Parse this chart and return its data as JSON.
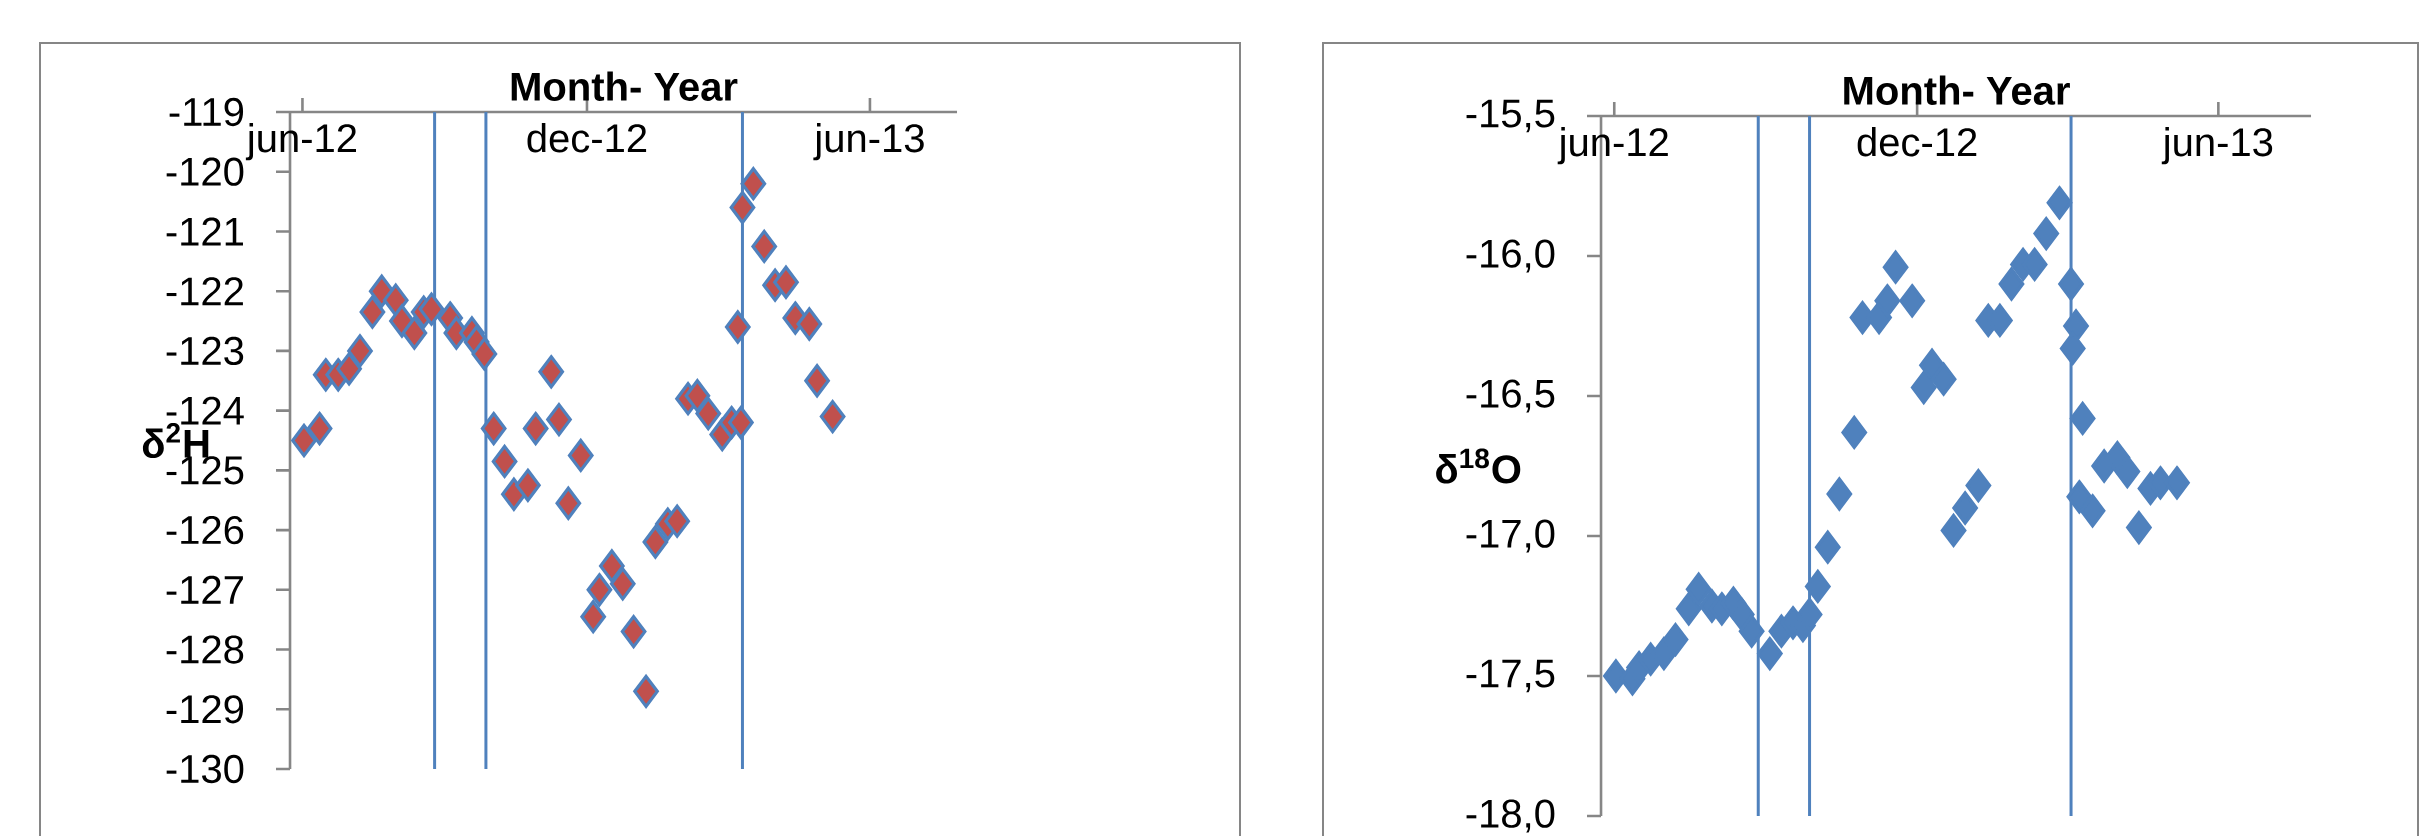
{
  "chart_data": [
    {
      "type": "scatter",
      "xlabel": "Month- Year",
      "ylabel": "δ$^{2}$H",
      "marker": "diamond",
      "xlim": [
        "2012-05-24",
        "2013-07-27"
      ],
      "ylim": [
        -130,
        -119
      ],
      "xticks": [
        {
          "value": "2012-06-01",
          "label": "jun-12"
        },
        {
          "value": "2012-12-01",
          "label": "dec-12"
        },
        {
          "value": "2013-06-01",
          "label": "jun-13"
        }
      ],
      "yticks": [
        -130,
        -129,
        -128,
        -127,
        -126,
        -125,
        -124,
        -123,
        -122,
        -121,
        -120,
        -119
      ],
      "ref_lines": [
        {
          "axis": "x",
          "value": "2012-08-25",
          "color": "#4f81bd"
        },
        {
          "axis": "x",
          "value": "2012-09-27",
          "color": "#4f81bd"
        },
        {
          "axis": "x",
          "value": "2013-03-11",
          "color": "#4f81bd"
        }
      ],
      "series": [
        {
          "color": "#c0504d",
          "x": [
            "2012-06-02",
            "2012-06-12",
            "2012-06-16",
            "2012-06-24",
            "2012-07-01",
            "2012-07-08",
            "2012-07-16",
            "2012-07-22",
            "2012-07-31",
            "2012-08-04",
            "2012-08-12",
            "2012-08-18",
            "2012-08-23",
            "2012-09-04",
            "2012-09-08",
            "2012-09-18",
            "2012-09-21",
            "2012-09-26",
            "2012-10-02",
            "2012-10-09",
            "2012-10-15",
            "2012-10-24",
            "2012-10-29",
            "2012-11-08",
            "2012-11-13",
            "2012-11-19",
            "2012-11-27",
            "2012-12-05",
            "2012-12-09",
            "2012-12-17",
            "2012-12-24",
            "2012-12-31",
            "2013-01-08",
            "2013-01-14",
            "2013-01-22",
            "2013-01-28",
            "2013-02-04",
            "2013-02-10",
            "2013-02-17",
            "2013-02-26",
            "2013-03-04",
            "2013-03-10",
            "2013-03-08",
            "2013-03-11",
            "2013-03-18",
            "2013-03-25",
            "2013-04-01",
            "2013-04-08",
            "2013-04-14",
            "2013-04-23",
            "2013-04-28",
            "2013-05-08"
          ],
          "values": [
            -124.5,
            -124.3,
            -123.4,
            -123.4,
            -123.3,
            -123.0,
            -122.35,
            -122.0,
            -122.15,
            -122.5,
            -122.7,
            -122.35,
            -122.3,
            -122.45,
            -122.7,
            -122.7,
            -122.85,
            -123.05,
            -124.3,
            -124.85,
            -125.4,
            -125.25,
            -124.3,
            -123.35,
            -124.15,
            -125.55,
            -124.75,
            -127.45,
            -127.0,
            -126.6,
            -126.9,
            -127.7,
            -128.7,
            -126.2,
            -125.9,
            -125.85,
            -123.8,
            -123.75,
            -124.05,
            -124.4,
            -124.2,
            -124.2,
            -122.6,
            -120.6,
            -120.2,
            -121.25,
            -121.9,
            -121.85,
            -122.45,
            -122.55,
            -123.5,
            -124.1
          ]
        }
      ]
    },
    {
      "type": "scatter",
      "xlabel": "Month- Year",
      "ylabel": "δ$^{18}$O",
      "marker": "diamond",
      "xlim": [
        "2012-05-24",
        "2013-07-27"
      ],
      "ylim": [
        -18.0,
        -15.5
      ],
      "xticks": [
        {
          "value": "2012-06-01",
          "label": "jun-12"
        },
        {
          "value": "2012-12-01",
          "label": "dec-12"
        },
        {
          "value": "2013-06-01",
          "label": "jun-13"
        }
      ],
      "yticks": [
        {
          "value": -18.0,
          "label": "-18,0"
        },
        {
          "value": -17.5,
          "label": "-17,5"
        },
        {
          "value": -17.0,
          "label": "-17,0"
        },
        {
          "value": -16.5,
          "label": "-16,5"
        },
        {
          "value": -16.0,
          "label": "-16,0"
        },
        {
          "value": -15.5,
          "label": "-15,5"
        }
      ],
      "ref_lines": [
        {
          "axis": "x",
          "value": "2012-08-27",
          "color": "#4f81bd"
        },
        {
          "axis": "x",
          "value": "2012-09-27",
          "color": "#4f81bd"
        },
        {
          "axis": "x",
          "value": "2013-03-04",
          "color": "#4f81bd"
        }
      ],
      "series": [
        {
          "color": "#4f81bd",
          "x": [
            "2012-06-02",
            "2012-06-12",
            "2012-06-16",
            "2012-06-23",
            "2012-07-01",
            "2012-07-08",
            "2012-07-16",
            "2012-07-22",
            "2012-07-30",
            "2012-08-05",
            "2012-08-12",
            "2012-08-17",
            "2012-08-23",
            "2012-09-03",
            "2012-09-10",
            "2012-09-17",
            "2012-09-23",
            "2012-09-27",
            "2012-10-02",
            "2012-10-08",
            "2012-10-15",
            "2012-10-24",
            "2012-10-29",
            "2012-11-08",
            "2012-11-13",
            "2012-11-18",
            "2012-11-28",
            "2012-12-05",
            "2012-12-10",
            "2012-12-17",
            "2012-12-23",
            "2012-12-30",
            "2013-01-07",
            "2013-01-13",
            "2013-01-20",
            "2013-01-27",
            "2013-02-03",
            "2013-02-10",
            "2013-02-17",
            "2013-02-25",
            "2013-03-04",
            "2013-03-07",
            "2013-03-05",
            "2013-03-11",
            "2013-03-09",
            "2013-03-17",
            "2013-03-24",
            "2013-04-01",
            "2013-04-07",
            "2013-04-14",
            "2013-04-21",
            "2013-04-27",
            "2013-05-07"
          ],
          "values": [
            -17.5,
            -17.51,
            -17.47,
            -17.44,
            -17.42,
            -17.37,
            -17.26,
            -17.19,
            -17.25,
            -17.26,
            -17.24,
            -17.28,
            -17.34,
            -17.42,
            -17.34,
            -17.31,
            -17.32,
            -17.28,
            -17.18,
            -17.04,
            -16.85,
            -16.63,
            -16.22,
            -16.22,
            -16.16,
            -16.04,
            -16.16,
            -16.47,
            -16.39,
            -16.44,
            -16.98,
            -16.9,
            -16.82,
            -16.23,
            -16.23,
            -16.1,
            -16.03,
            -16.03,
            -15.92,
            -15.81,
            -16.1,
            -16.25,
            -16.33,
            -16.58,
            -16.86,
            -16.91,
            -16.75,
            -16.72,
            -16.77,
            -16.97,
            -16.83,
            -16.81,
            -16.81
          ]
        }
      ]
    }
  ]
}
